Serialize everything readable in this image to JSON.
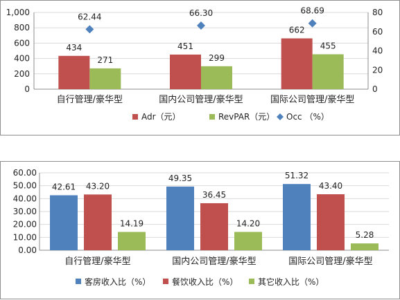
{
  "chart_data": [
    {
      "type": "bar",
      "categories": [
        "自行管理/豪华型",
        "国内公司管理/豪华型",
        "国际公司管理/豪华型"
      ],
      "series": [
        {
          "name": "Adr（元）",
          "values": [
            434,
            451,
            662
          ],
          "color": "#c0504d",
          "axis": "left"
        },
        {
          "name": "RevPAR（元）",
          "values": [
            271,
            299,
            455
          ],
          "color": "#9bbb59",
          "axis": "left"
        },
        {
          "name": "Occ （%）",
          "values": [
            62.44,
            66.3,
            68.69
          ],
          "color": "#4f81bd",
          "axis": "right",
          "render": "scatter-diamond"
        }
      ],
      "data_labels": {
        "Adr（元）": [
          "434",
          "451",
          "662"
        ],
        "RevPAR（元）": [
          "271",
          "299",
          "455"
        ],
        "Occ （%）": [
          "62.44",
          "66.30",
          "68.69"
        ]
      },
      "y_ticks": [
        "0",
        "200",
        "400",
        "600",
        "800",
        "1,000"
      ],
      "y2_ticks": [
        "0",
        "20",
        "40",
        "60",
        "80"
      ],
      "ylim": [
        0,
        1000
      ],
      "y2lim": [
        0,
        80
      ],
      "grid": true,
      "legend_position": "bottom"
    },
    {
      "type": "bar",
      "categories": [
        "自行管理/豪华型",
        "国内公司管理/豪华型",
        "国际公司管理/豪华型"
      ],
      "series": [
        {
          "name": "客房收入比（%）",
          "values": [
            42.61,
            49.35,
            51.32
          ],
          "color": "#4f81bd"
        },
        {
          "name": "餐饮收入比（%）",
          "values": [
            43.2,
            36.45,
            43.4
          ],
          "color": "#c0504d"
        },
        {
          "name": "其它收入比（%）",
          "values": [
            14.19,
            14.2,
            5.28
          ],
          "color": "#9bbb59"
        }
      ],
      "data_labels": {
        "客房收入比（%）": [
          "42.61",
          "49.35",
          "51.32"
        ],
        "餐饮收入比（%）": [
          "43.20",
          "36.45",
          "43.40"
        ],
        "其它收入比（%）": [
          "14.19",
          "14.20",
          "5.28"
        ]
      },
      "y_ticks": [
        "0.00",
        "10.00",
        "20.00",
        "30.00",
        "40.00",
        "50.00",
        "60.00"
      ],
      "ylim": [
        0,
        60
      ],
      "grid": true,
      "legend_position": "bottom"
    }
  ]
}
